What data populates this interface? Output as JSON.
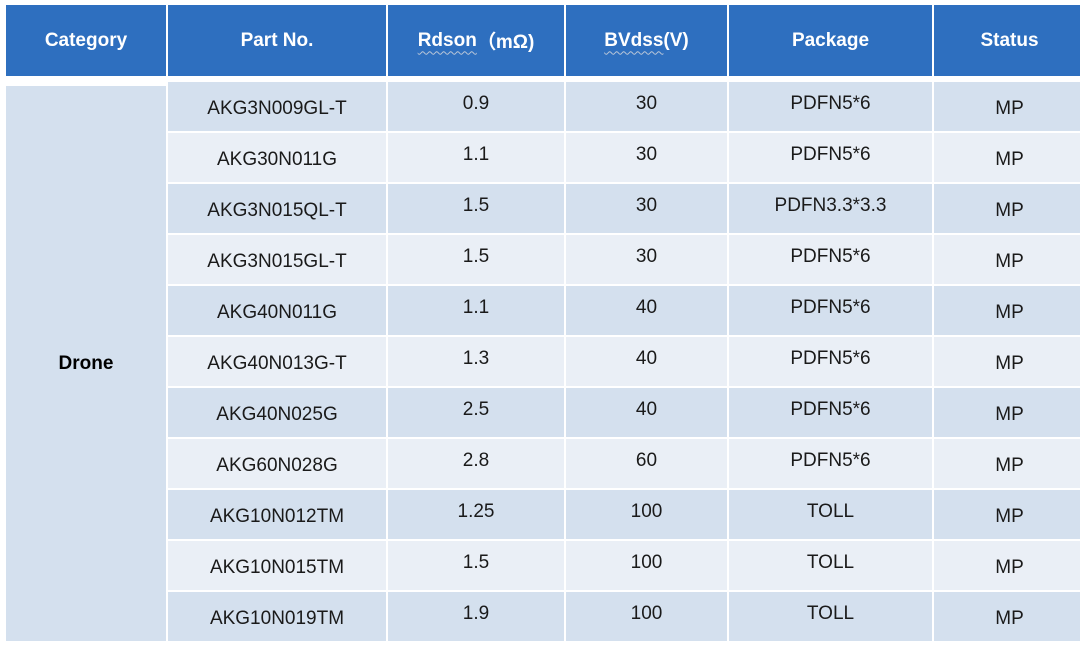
{
  "table": {
    "headers": {
      "category": "Category",
      "part_no": "Part No.",
      "rdson_main": "Rdson",
      "rdson_unit": "（mΩ)",
      "bvdss_main": "BVdss",
      "bvdss_unit": "(V)",
      "package": "Package",
      "status": "Status"
    },
    "category": "Drone",
    "rows": [
      {
        "part": "AKG3N009GL-T",
        "rdson": "0.9",
        "bvdss": "30",
        "package": "PDFN5*6",
        "status": "MP"
      },
      {
        "part": "AKG30N011G",
        "rdson": "1.1",
        "bvdss": "30",
        "package": "PDFN5*6",
        "status": "MP"
      },
      {
        "part": "AKG3N015QL-T",
        "rdson": "1.5",
        "bvdss": "30",
        "package": "PDFN3.3*3.3",
        "status": "MP"
      },
      {
        "part": "AKG3N015GL-T",
        "rdson": "1.5",
        "bvdss": "30",
        "package": "PDFN5*6",
        "status": "MP"
      },
      {
        "part": "AKG40N011G",
        "rdson": "1.1",
        "bvdss": "40",
        "package": "PDFN5*6",
        "status": "MP"
      },
      {
        "part": "AKG40N013G-T",
        "rdson": "1.3",
        "bvdss": "40",
        "package": "PDFN5*6",
        "status": "MP"
      },
      {
        "part": "AKG40N025G",
        "rdson": "2.5",
        "bvdss": "40",
        "package": "PDFN5*6",
        "status": "MP"
      },
      {
        "part": "AKG60N028G",
        "rdson": "2.8",
        "bvdss": "60",
        "package": "PDFN5*6",
        "status": "MP"
      },
      {
        "part": "AKG10N012TM",
        "rdson": "1.25",
        "bvdss": "100",
        "package": "TOLL",
        "status": "MP"
      },
      {
        "part": "AKG10N015TM",
        "rdson": "1.5",
        "bvdss": "100",
        "package": "TOLL",
        "status": "MP"
      },
      {
        "part": "AKG10N019TM",
        "rdson": "1.9",
        "bvdss": "100",
        "package": "TOLL",
        "status": "MP"
      }
    ],
    "colors": {
      "header_bg": "#2e6fbf",
      "row_dark": "#d4e0ee",
      "row_light": "#eaeff6"
    }
  }
}
